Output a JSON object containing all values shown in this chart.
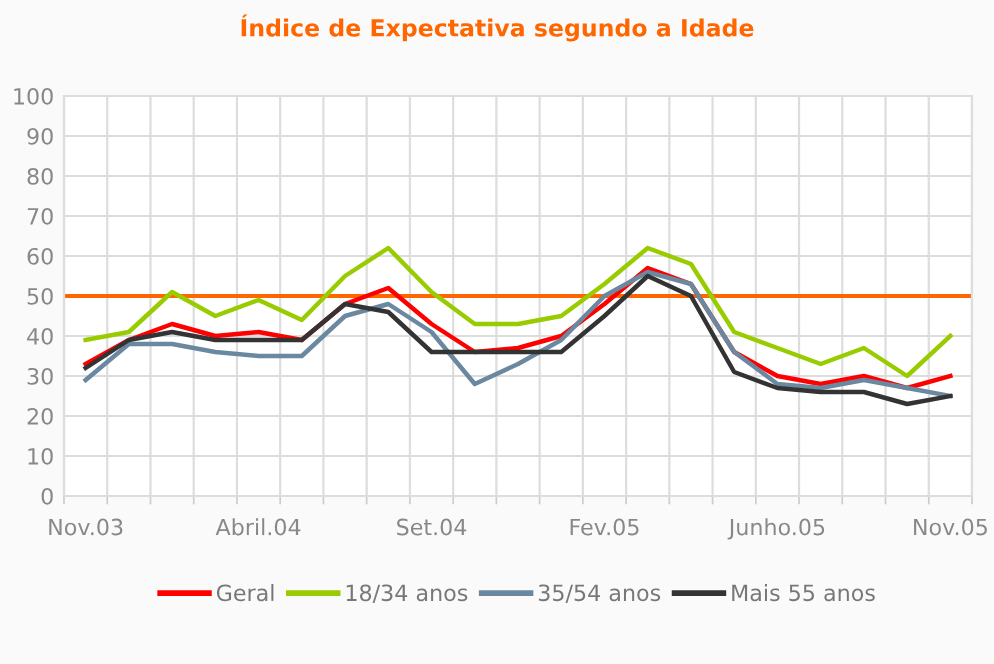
{
  "chart_data": {
    "type": "line",
    "title": "Índice de Expectativa segundo a Idade",
    "categories": [
      "Nov.03",
      null,
      null,
      null,
      "Abril.04",
      null,
      null,
      null,
      "Set.04",
      null,
      null,
      null,
      "Fev.05",
      null,
      null,
      null,
      "Junho.05",
      null,
      null,
      null,
      "Nov.05"
    ],
    "series": [
      {
        "name": "Geral",
        "color": "#ff0000",
        "values": [
          33,
          39,
          43,
          40,
          41,
          39,
          48,
          52,
          43,
          36,
          37,
          40,
          48,
          57,
          53,
          36,
          30,
          28,
          30,
          27,
          30
        ]
      },
      {
        "name": "18/34 anos",
        "color": "#99cc00",
        "values": [
          39,
          41,
          51,
          45,
          49,
          44,
          55,
          62,
          51,
          43,
          43,
          45,
          53,
          62,
          58,
          41,
          37,
          33,
          37,
          30,
          40
        ]
      },
      {
        "name": "35/54 anos",
        "color": "#6a88a0",
        "values": [
          29,
          38,
          38,
          36,
          35,
          35,
          45,
          48,
          41,
          28,
          33,
          39,
          50,
          56,
          53,
          36,
          28,
          27,
          29,
          27,
          25
        ]
      },
      {
        "name": "Mais 55 anos",
        "color": "#333333",
        "values": [
          32,
          39,
          41,
          39,
          39,
          39,
          48,
          46,
          36,
          36,
          36,
          36,
          45,
          55,
          50,
          31,
          27,
          26,
          26,
          23,
          25
        ]
      }
    ],
    "ylim": [
      0,
      100
    ],
    "yticks": [
      0,
      10,
      20,
      30,
      40,
      50,
      60,
      70,
      80,
      90,
      100
    ],
    "ref_lines": [
      {
        "axis": "y",
        "value": 50,
        "color": "#ff6600"
      }
    ],
    "grid": true,
    "legend": "bottom",
    "marker": "none",
    "line_style": "solid"
  }
}
